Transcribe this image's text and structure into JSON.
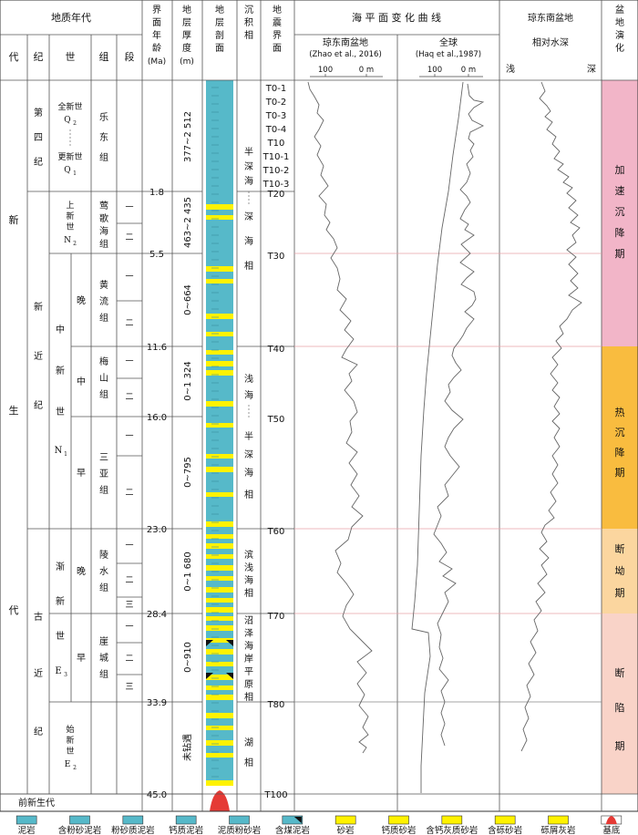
{
  "header": {
    "geologic_age": "地质年代",
    "era": "代",
    "period": "纪",
    "epoch": "世",
    "group": "组",
    "segment": "段",
    "boundary_age": [
      "界",
      "面",
      "年",
      "龄",
      "(Ma)"
    ],
    "thickness": [
      "地",
      "层",
      "厚",
      "度",
      "(m)"
    ],
    "profile": [
      "地",
      "层",
      "剖",
      "面"
    ],
    "facies": [
      "沉",
      "积",
      "相"
    ],
    "seismic": [
      "地",
      "震",
      "界",
      "面"
    ],
    "sea_level_title": "海 平 面 变 化 曲 线",
    "qdn_basin": "琼东南盆地",
    "qdn_ref": "(Zhao et al., 2016)",
    "global": "全球",
    "global_ref": "(Haq et al.,1987)",
    "axis_100": "100",
    "axis_0m": "0 m",
    "water_depth_title1": "琼东南盆地",
    "water_depth_title2": "相对水深",
    "shallow": "浅",
    "deep": "深",
    "basin_evolution": [
      "盆",
      "地",
      "演",
      "化"
    ]
  },
  "eras": [
    {
      "id": "cenozoic",
      "chars": [
        "新",
        "生",
        "代"
      ]
    },
    {
      "id": "pre",
      "label": "前新生代"
    }
  ],
  "periods": {
    "quaternary": [
      "第",
      "四",
      "纪"
    ],
    "neogene": [
      "新",
      "近",
      "纪"
    ],
    "paleogene": [
      "古",
      "近",
      "纪"
    ]
  },
  "epochs": {
    "holocene": "全新世",
    "holocene_sym": "Q",
    "holocene_sub": "2",
    "pleistocene": "更新世",
    "pleistocene_sym": "Q",
    "pleistocene_sub": "1",
    "pliocene": [
      "上",
      "新",
      "世"
    ],
    "pliocene_sym": "N",
    "pliocene_sub": "2",
    "miocene": [
      "中",
      "新",
      "世"
    ],
    "miocene_sym": "N",
    "miocene_sub": "1",
    "oligocene": [
      "渐",
      "新",
      "世"
    ],
    "oligocene_sym": "E",
    "oligocene_sub": "3",
    "eocene": [
      "始",
      "新",
      "世"
    ],
    "eocene_sym": "E",
    "eocene_sub": "2"
  },
  "subepochs": [
    "晚",
    "中",
    "早",
    "晚",
    "早"
  ],
  "groups": [
    [
      "乐",
      "东",
      "组"
    ],
    [
      "莺",
      "歌",
      "海",
      "组"
    ],
    [
      "黄",
      "流",
      "组"
    ],
    [
      "梅",
      "山",
      "组"
    ],
    [
      "三",
      "亚",
      "组"
    ],
    [
      "陵",
      "水",
      "组"
    ],
    [
      "崖",
      "城",
      "组"
    ]
  ],
  "segment_labels": [
    "一",
    "二",
    "一",
    "二",
    "一",
    "二",
    "一",
    "二",
    "一",
    "二",
    "三",
    "一",
    "二",
    "三"
  ],
  "ages": [
    "1.8",
    "5.5",
    "11.6",
    "16.0",
    "23.0",
    "28.4",
    "33.9",
    "45.0"
  ],
  "thicknesses": [
    "377~2 512",
    "463~2 435",
    "0~664",
    "0~1 324",
    "0~795",
    "0~1 680",
    "0~910",
    "未钻遇"
  ],
  "facies": {
    "f1": [
      "半",
      "深",
      "海",
      "—",
      "深",
      "海",
      "相"
    ],
    "f2": [
      "浅",
      "海",
      "—",
      "半",
      "深",
      "海",
      "相"
    ],
    "f3": [
      "滨",
      "浅",
      "海",
      "相"
    ],
    "f4": [
      "沼",
      "泽",
      "海",
      "岸",
      "平",
      "原",
      "相"
    ],
    "f5": [
      "湖",
      "相"
    ]
  },
  "seismic_boundaries": [
    "T0-1",
    "T0-2",
    "T0-3",
    "T0-4",
    "T10",
    "T10-1",
    "T10-2",
    "T10-3",
    "T20",
    "T30",
    "T40",
    "T50",
    "T60",
    "T70",
    "T80",
    "T100"
  ],
  "evolution": {
    "e1": [
      "加",
      "速",
      "沉",
      "降",
      "期"
    ],
    "e2": [
      "热",
      "沉",
      "降",
      "期"
    ],
    "e3": [
      "断",
      "坳",
      "期"
    ],
    "e4": [
      "断",
      "陷",
      "期"
    ]
  },
  "colors": {
    "accelerated": "#f2b5c8",
    "thermal": "#f9bc3f",
    "rift_depression": "#fbd69f",
    "rift": "#f9d3c8",
    "mud": "#56b9c9",
    "sand": "#fff200",
    "basement": "#e53a35",
    "boundary_line": "#e8a0a8"
  },
  "legend": [
    {
      "label": "泥岩",
      "icon": "mudstone-icon"
    },
    {
      "label": "含粉砂泥岩",
      "icon": "silty-mudstone-icon"
    },
    {
      "label": "粉砂质泥岩",
      "icon": "silty-mud-icon"
    },
    {
      "label": "钙质泥岩",
      "icon": "calcareous-mudstone-icon"
    },
    {
      "label": "泥质粉砂岩",
      "icon": "muddy-siltstone-icon"
    },
    {
      "label": "含煤泥岩",
      "icon": "coaly-mudstone-icon"
    },
    {
      "label": "砂岩",
      "icon": "sandstone-icon"
    },
    {
      "label": "钙质砂岩",
      "icon": "calcareous-sandstone-icon"
    },
    {
      "label": "含钙灰质砂岩",
      "icon": "calc-limy-sandstone-icon"
    },
    {
      "label": "含砾砂岩",
      "icon": "pebbly-sandstone-icon"
    },
    {
      "label": "砾屑灰岩",
      "icon": "calcirudite-icon"
    },
    {
      "label": "基底",
      "icon": "basement-icon"
    }
  ]
}
